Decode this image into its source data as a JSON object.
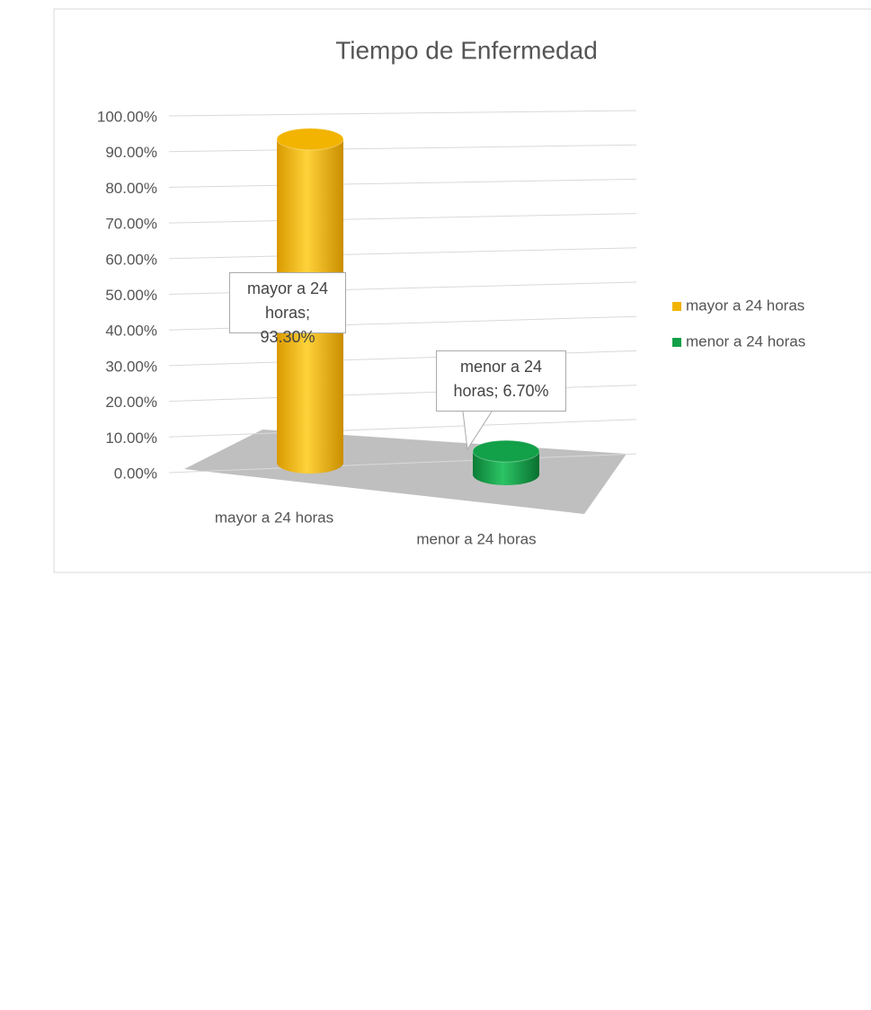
{
  "chart_data": {
    "type": "bar3d",
    "title": "Tiempo de Enfermedad",
    "categories": [
      "mayor a 24 horas",
      "menor a 24 horas"
    ],
    "values": [
      93.3,
      6.7
    ],
    "value_labels": [
      "mayor a 24 horas; 93.30%",
      "menor a 24 horas; 6.70%"
    ],
    "colors": [
      "#f2b400",
      "#12a048"
    ],
    "ylim": [
      0,
      100
    ],
    "yticks": [
      {
        "value": 0,
        "label": "0.00%"
      },
      {
        "value": 10,
        "label": "10.00%"
      },
      {
        "value": 20,
        "label": "20.00%"
      },
      {
        "value": 30,
        "label": "30.00%"
      },
      {
        "value": 40,
        "label": "40.00%"
      },
      {
        "value": 50,
        "label": "50.00%"
      },
      {
        "value": 60,
        "label": "60.00%"
      },
      {
        "value": 70,
        "label": "70.00%"
      },
      {
        "value": 80,
        "label": "80.00%"
      },
      {
        "value": 90,
        "label": "90.00%"
      },
      {
        "value": 100,
        "label": "100.00%"
      }
    ],
    "grid": true,
    "legend": "right"
  }
}
